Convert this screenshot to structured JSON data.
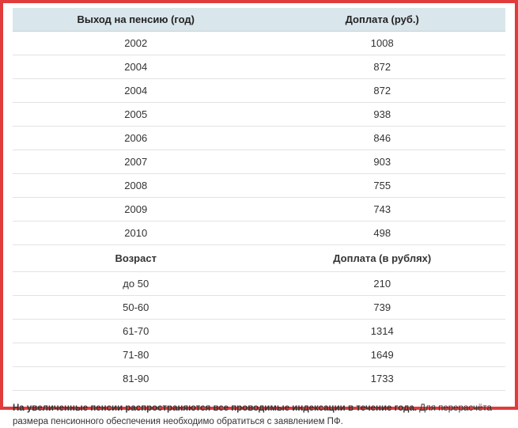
{
  "frame_border_color": "#e03c3c",
  "header_bg_color": "#d9e6ec",
  "row_border_color": "#e2e2e2",
  "table1": {
    "columns": [
      "Выход на пенсию (год)",
      "Доплата (руб.)"
    ],
    "rows": [
      [
        "2002",
        "1008"
      ],
      [
        "2004",
        "872"
      ],
      [
        "2004",
        "872"
      ],
      [
        "2005",
        "938"
      ],
      [
        "2006",
        "846"
      ],
      [
        "2007",
        "903"
      ],
      [
        "2008",
        "755"
      ],
      [
        "2009",
        "743"
      ],
      [
        "2010",
        "498"
      ]
    ]
  },
  "table2": {
    "columns": [
      "Возраст",
      "Доплата (в рублях)"
    ],
    "rows": [
      [
        "до 50",
        "210"
      ],
      [
        "50-60",
        "739"
      ],
      [
        "61-70",
        "1314"
      ],
      [
        "71-80",
        "1649"
      ],
      [
        "81-90",
        "1733"
      ]
    ]
  },
  "footnote": {
    "bold": "На увеличенные пенсии распространяются все проводимые индексации в течение года.",
    "rest": " Для перерасчёта размера пенсионного обеспечения необходимо обратиться с заявлением ПФ."
  }
}
